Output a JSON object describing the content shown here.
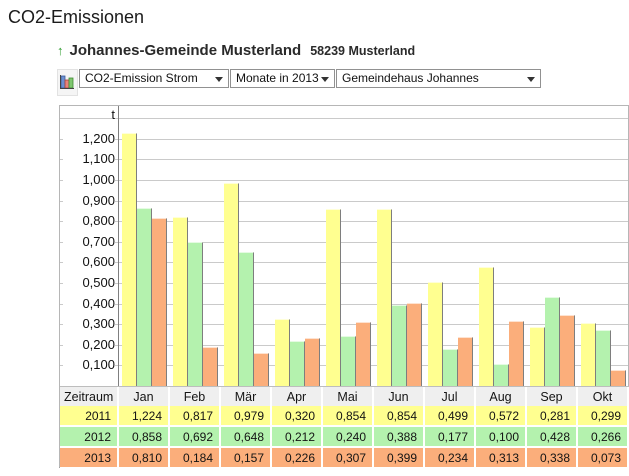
{
  "page": {
    "title": "CO2-Emissionen"
  },
  "header": {
    "up_arrow": "↑",
    "name": "Johannes-Gemeinde Musterland",
    "zip_city": "58239 Musterland"
  },
  "toolbar": {
    "chart_icon": "bar-chart-icon",
    "dropdowns": [
      {
        "value": "CO2-Emission Strom"
      },
      {
        "value": "Monate in 2013"
      },
      {
        "value": "Gemeindehaus Johannes"
      }
    ]
  },
  "chart_data": {
    "type": "bar",
    "title": "CO2-Emission Strom - Monate in 2013 - Gemeindehaus Johannes",
    "unit_label": "t",
    "categories": [
      "Jan",
      "Feb",
      "Mär",
      "Apr",
      "Mai",
      "Jun",
      "Jul",
      "Aug",
      "Sep",
      "Okt"
    ],
    "series": [
      {
        "name": "2011",
        "color": "#ffff90",
        "values": [
          1.224,
          0.817,
          0.979,
          0.32,
          0.854,
          0.854,
          0.499,
          0.572,
          0.281,
          0.299
        ]
      },
      {
        "name": "2012",
        "color": "#b4f2ae",
        "values": [
          0.858,
          0.692,
          0.648,
          0.212,
          0.24,
          0.388,
          0.177,
          0.1,
          0.428,
          0.266
        ]
      },
      {
        "name": "2013",
        "color": "#fbae7b",
        "values": [
          0.81,
          0.184,
          0.157,
          0.226,
          0.307,
          0.399,
          0.234,
          0.313,
          0.338,
          0.073
        ]
      }
    ],
    "ylim": [
      0,
      1.3
    ],
    "ytick_step": 0.1,
    "ytick_labels": [
      "0,100",
      "0,200",
      "0,300",
      "0,400",
      "0,500",
      "0,600",
      "0,700",
      "0,800",
      "0,900",
      "1,000",
      "1,100",
      "1,200"
    ],
    "grid": true,
    "legend_position": "table-below"
  },
  "table": {
    "corner_label": "Zeitraum",
    "columns": [
      "Jan",
      "Feb",
      "Mär",
      "Apr",
      "Mai",
      "Jun",
      "Jul",
      "Aug",
      "Sep",
      "Okt"
    ],
    "header_bg": "#efefef",
    "rows": [
      {
        "label": "2011",
        "color": "#ffff90",
        "cells": [
          "1,224",
          "0,817",
          "0,979",
          "0,320",
          "0,854",
          "0,854",
          "0,499",
          "0,572",
          "0,281",
          "0,299"
        ]
      },
      {
        "label": "2012",
        "color": "#b4f2ae",
        "cells": [
          "0,858",
          "0,692",
          "0,648",
          "0,212",
          "0,240",
          "0,388",
          "0,177",
          "0,100",
          "0,428",
          "0,266"
        ]
      },
      {
        "label": "2013",
        "color": "#fbae7b",
        "cells": [
          "0,810",
          "0,184",
          "0,157",
          "0,226",
          "0,307",
          "0,399",
          "0,234",
          "0,313",
          "0,338",
          "0,073"
        ]
      }
    ]
  }
}
